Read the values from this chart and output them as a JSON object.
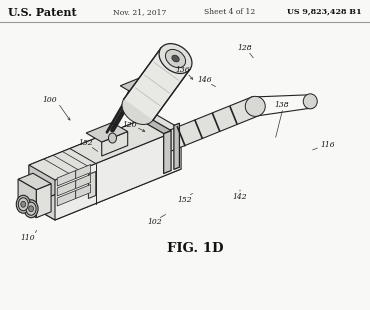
{
  "background_color": "#f8f8f6",
  "header": {
    "us_patent_text": "U.S. Patent",
    "date_text": "Nov. 21, 2017",
    "sheet_text": "Sheet 4 of 12",
    "patent_num_text": "US 9,823,428 B1"
  },
  "fig_label": "FIG. 1D",
  "line_color": "#222222",
  "fill_light": "#f0f0ee",
  "fill_mid": "#e0e0dd",
  "fill_dark": "#c8c8c5"
}
